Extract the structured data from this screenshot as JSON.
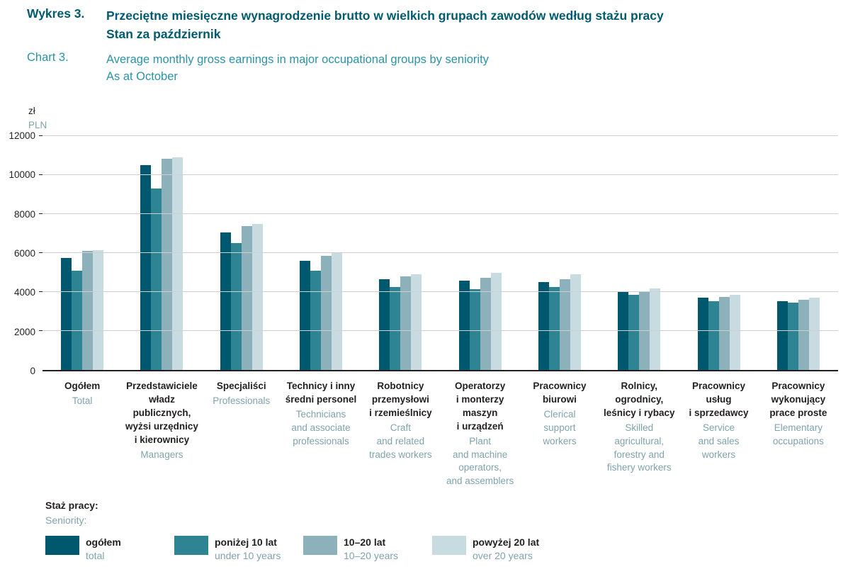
{
  "header": {
    "label_pl": "Wykres 3.",
    "title_pl_line1": "Przeciętne miesięczne wynagrodzenie brutto w wielkich grupach zawodów według stażu pracy",
    "title_pl_line2": "Stan za październik",
    "label_en": "Chart 3.",
    "title_en_line1": "Average monthly gross earnings in major occupational groups by seniority",
    "title_en_line2": "As at October"
  },
  "chart_data": {
    "type": "bar",
    "unit_pl": "zł",
    "unit_en": "PLN",
    "ylim": [
      0,
      12000
    ],
    "yticks": [
      0,
      2000,
      4000,
      6000,
      8000,
      10000,
      12000
    ],
    "grid": true,
    "legend_position": "bottom",
    "legend_title_pl": "Staż pracy:",
    "legend_title_en": "Seniority:",
    "categories": [
      {
        "pl": "Ogółem",
        "en": "Total"
      },
      {
        "pl": "Przedstawiciele\nwładz\npublicznych,\nwyżsi urzędnicy\ni kierownicy",
        "en": "Managers"
      },
      {
        "pl": "Specjaliści",
        "en": "Professionals"
      },
      {
        "pl": "Technicy i inny\nśredni personel",
        "en": "Technicians\nand associate\nprofessionals"
      },
      {
        "pl": "Robotnicy\nprzemysłowi\ni rzemieślnicy",
        "en": "Craft\nand related\ntrades workers"
      },
      {
        "pl": "Operatorzy\ni monterzy\nmaszyn\ni urządzeń",
        "en": "Plant\nand machine\noperators,\nand assemblers"
      },
      {
        "pl": "Pracownicy\nbiurowi",
        "en": "Clerical\nsupport\nworkers"
      },
      {
        "pl": "Rolnicy,\nogrodnicy,\nleśnicy i rybacy",
        "en": "Skilled\nagricultural,\nforestry and\nfishery workers"
      },
      {
        "pl": "Pracownicy\nusług\ni sprzedawcy",
        "en": "Service\nand sales\nworkers"
      },
      {
        "pl": "Pracownicy\nwykonujący\nprace proste",
        "en": "Elementary\noccupations"
      }
    ],
    "series": [
      {
        "name_pl": "ogółem",
        "name_en": "total",
        "color": "#00586e",
        "values": [
          5750,
          10500,
          7050,
          5600,
          4650,
          4600,
          4500,
          4050,
          3700,
          3550
        ]
      },
      {
        "name_pl": "poniżej 10 lat",
        "name_en": "under 10 years",
        "color": "#2e8492",
        "values": [
          5100,
          9300,
          6500,
          5100,
          4250,
          4150,
          4250,
          3850,
          3550,
          3450
        ]
      },
      {
        "name_pl": "10–20 lat",
        "name_en": "10–20 years",
        "color": "#8cb1ba",
        "values": [
          6100,
          10850,
          7400,
          5850,
          4800,
          4750,
          4650,
          4050,
          3750,
          3600
        ]
      },
      {
        "name_pl": "powyżej 20 lat",
        "name_en": "over 20 years",
        "color": "#c7dbe0",
        "values": [
          6150,
          10900,
          7500,
          6000,
          4900,
          5000,
          4900,
          4200,
          3850,
          3700
        ]
      }
    ]
  }
}
